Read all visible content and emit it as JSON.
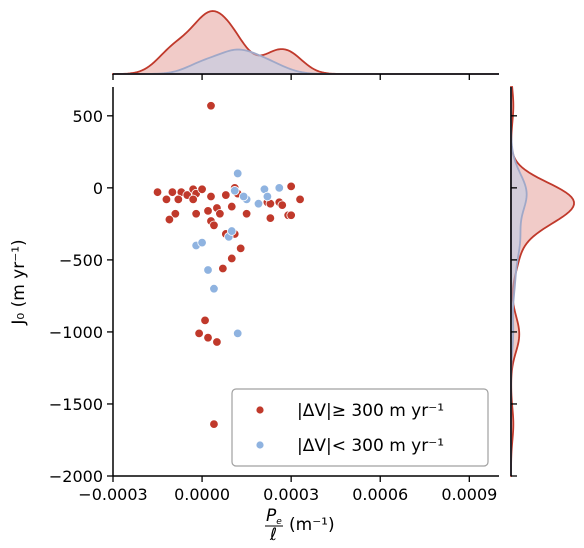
{
  "chart_data": {
    "type": "scatter",
    "title": "",
    "xlabel": "Pe/ℓ (m⁻¹)",
    "xlabel_parts": {
      "num": "P",
      "num_sub": "e",
      "den": "ℓ",
      "unit": "(m⁻¹)"
    },
    "ylabel": "J₀ (m yr⁻¹)",
    "xlim": [
      -0.0003,
      0.001
    ],
    "ylim": [
      -2000,
      700
    ],
    "xticks": [
      -0.0003,
      0.0,
      0.0003,
      0.0006,
      0.0009
    ],
    "xtick_labels": [
      "−0.0003",
      "0.0000",
      "0.0003",
      "0.0006",
      "0.0009"
    ],
    "yticks": [
      500,
      0,
      -500,
      -1000,
      -1500,
      -2000
    ],
    "ytick_labels": [
      "500",
      "0",
      "−500",
      "−1000",
      "−1500",
      "−2000"
    ],
    "legend_position": "lower-right",
    "series": [
      {
        "name": "|ΔV| ≥ 300 m yr⁻¹",
        "legend_label": "|ΔV|≥ 300 m yr⁻¹",
        "color": "#c0392b",
        "fill": "#e8a9a3",
        "points": [
          [
            -0.00015,
            -30
          ],
          [
            -0.0001,
            -30
          ],
          [
            -7e-05,
            -30
          ],
          [
            -5e-05,
            -50
          ],
          [
            -3e-05,
            -10
          ],
          [
            -2e-05,
            -40
          ],
          [
            0.0,
            -10
          ],
          [
            3e-05,
            -60
          ],
          [
            -0.00012,
            -80
          ],
          [
            -8e-05,
            -80
          ],
          [
            -3e-05,
            -80
          ],
          [
            8e-05,
            -50
          ],
          [
            0.00011,
            0
          ],
          [
            0.00012,
            -40
          ],
          [
            -2e-05,
            -180
          ],
          [
            2e-05,
            -160
          ],
          [
            5e-05,
            -140
          ],
          [
            -9e-05,
            -180
          ],
          [
            -0.00011,
            -220
          ],
          [
            3e-05,
            -230
          ],
          [
            4e-05,
            -260
          ],
          [
            6e-05,
            -180
          ],
          [
            0.0001,
            -130
          ],
          [
            0.00011,
            -320
          ],
          [
            8e-05,
            -320
          ],
          [
            0.00013,
            -420
          ],
          [
            0.0001,
            -490
          ],
          [
            7e-05,
            -560
          ],
          [
            0.00015,
            -180
          ],
          [
            0.00022,
            -100
          ],
          [
            0.00023,
            -110
          ],
          [
            0.00026,
            -100
          ],
          [
            0.00027,
            -120
          ],
          [
            0.00029,
            -190
          ],
          [
            0.0003,
            -190
          ],
          [
            0.0003,
            10
          ],
          [
            0.00033,
            -80
          ],
          [
            0.00023,
            -210
          ],
          [
            3e-05,
            570
          ],
          [
            -1e-05,
            -1010
          ],
          [
            1e-05,
            -920
          ],
          [
            2e-05,
            -1040
          ],
          [
            5e-05,
            -1070
          ],
          [
            4e-05,
            -1640
          ]
        ]
      },
      {
        "name": "|ΔV| < 300 m yr⁻¹",
        "legend_label": "|ΔV|< 300 m yr⁻¹",
        "color": "#8fb3e0",
        "fill": "#b9cde9",
        "points": [
          [
            0.00012,
            100
          ],
          [
            0.00011,
            -20
          ],
          [
            0.00015,
            -80
          ],
          [
            0.00014,
            -60
          ],
          [
            0.00019,
            -110
          ],
          [
            0.00021,
            -10
          ],
          [
            0.00022,
            -60
          ],
          [
            0.00026,
            0
          ],
          [
            9e-05,
            -340
          ],
          [
            0.0001,
            -300
          ],
          [
            -2e-05,
            -400
          ],
          [
            0.0,
            -380
          ],
          [
            2e-05,
            -570
          ],
          [
            4e-05,
            -700
          ],
          [
            0.00012,
            -1010
          ]
        ]
      }
    ]
  }
}
